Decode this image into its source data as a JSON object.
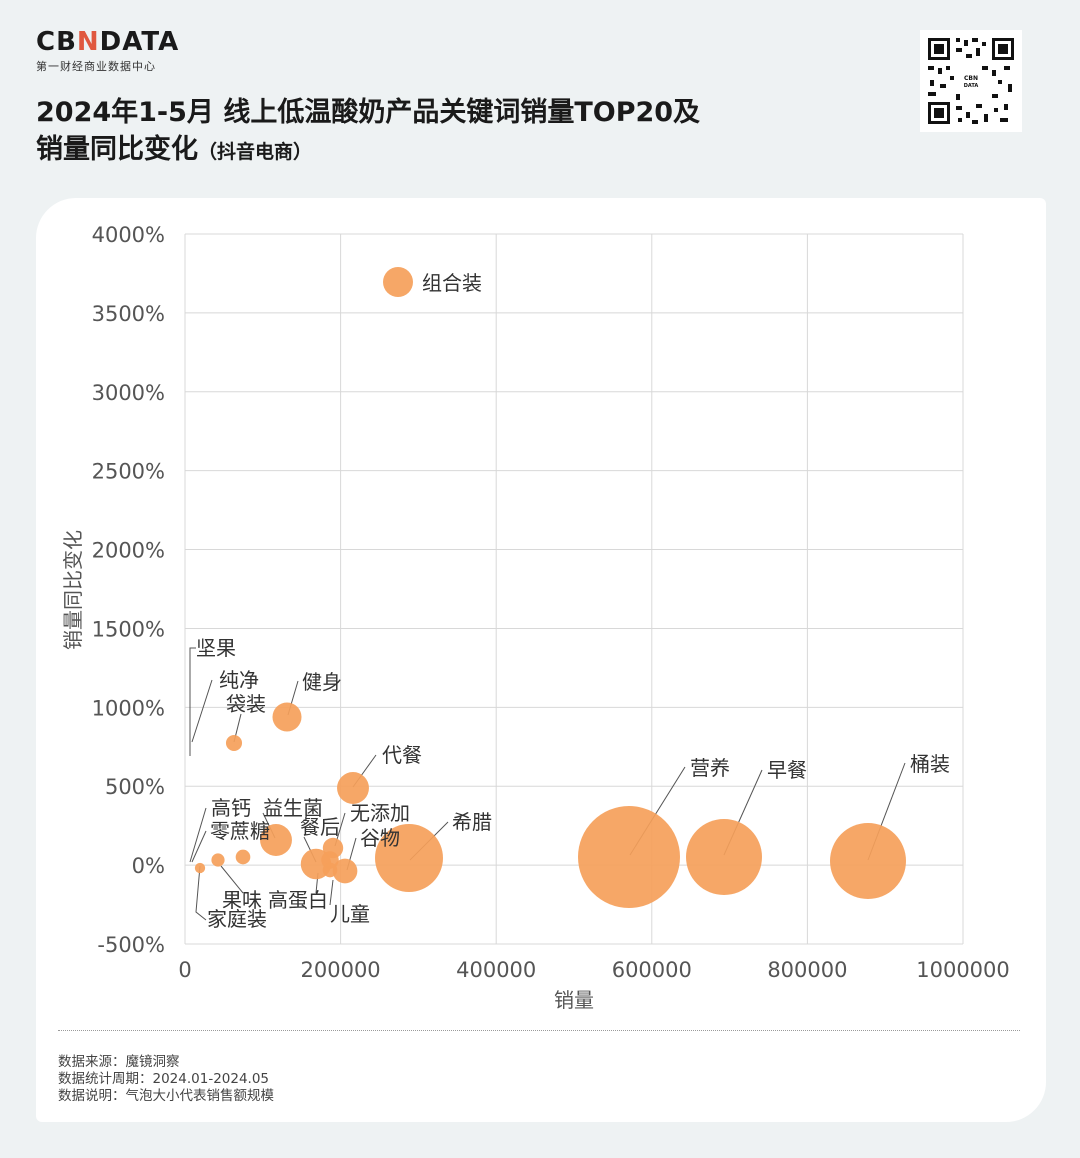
{
  "brand": {
    "logo_pre": "CB",
    "logo_x": "N",
    "logo_post": "DATA",
    "sub": "第一财经商业数据中心"
  },
  "header": {
    "title_line1": "2024年1-5月 线上低温酸奶产品关键词销量TOP20及",
    "title_line2": "销量同比变化",
    "title_suffix": "（抖音电商）"
  },
  "qr_icon": "qr-code-icon",
  "colors": {
    "bubble": "#f5a05a",
    "grid": "#d8d8d8",
    "leader": "#555555",
    "background": "#eef2f3"
  },
  "chart_data": {
    "type": "scatter",
    "subtype": "bubble",
    "xlabel": "销量",
    "ylabel": "销量同比变化",
    "xlim": [
      0,
      1000000
    ],
    "ylim": [
      -500,
      4000
    ],
    "x_ticks": [
      0,
      200000,
      400000,
      600000,
      800000,
      1000000
    ],
    "x_tick_labels": [
      "0",
      "200000",
      "400000",
      "600000",
      "800000",
      "1000000"
    ],
    "y_ticks": [
      -500,
      0,
      500,
      1000,
      1500,
      2000,
      2500,
      3000,
      3500,
      4000
    ],
    "y_tick_labels": [
      "-500%",
      "0%",
      "500%",
      "1000%",
      "1500%",
      "2000%",
      "2500%",
      "3000%",
      "3500%",
      "4000%"
    ],
    "grid": true,
    "size_meaning": "气泡大小代表销售额规模",
    "points": [
      {
        "name": "组合装",
        "x": 275000,
        "y": 3680,
        "size": 14
      },
      {
        "name": "坚果",
        "x": 8000,
        "y": 760,
        "size": 1
      },
      {
        "name": "纯净",
        "x": 10000,
        "y": 80,
        "size": 1
      },
      {
        "name": "袋装",
        "x": 62000,
        "y": 770,
        "size": 7
      },
      {
        "name": "健身",
        "x": 132000,
        "y": 935,
        "size": 16
      },
      {
        "name": "代餐",
        "x": 217000,
        "y": 485,
        "size": 18
      },
      {
        "name": "高钙",
        "x": 14000,
        "y": 30,
        "size": 1
      },
      {
        "name": "零蔗糖",
        "x": 40000,
        "y": 30,
        "size": 5
      },
      {
        "name": "果味",
        "x": 75000,
        "y": 55,
        "size": 6
      },
      {
        "name": "家庭装",
        "x": 18000,
        "y": -25,
        "size": 3
      },
      {
        "name": "益生菌",
        "x": 117000,
        "y": 165,
        "size": 18
      },
      {
        "name": "餐后",
        "x": 168000,
        "y": 5,
        "size": 17
      },
      {
        "name": "高蛋白",
        "x": 188000,
        "y": 110,
        "size": 10
      },
      {
        "name": "无添加",
        "x": 208000,
        "y": -40,
        "size": 13
      },
      {
        "name": "儿童",
        "x": 190000,
        "y": -10,
        "size": 8
      },
      {
        "name": "谷物",
        "x": 200000,
        "y": -30,
        "size": 6
      },
      {
        "name": "希腊",
        "x": 290000,
        "y": 40,
        "size": 34
      },
      {
        "name": "营养",
        "x": 570000,
        "y": 50,
        "size": 52
      },
      {
        "name": "早餐",
        "x": 692000,
        "y": 50,
        "size": 38
      },
      {
        "name": "桶装",
        "x": 877000,
        "y": 20,
        "size": 38
      }
    ]
  },
  "footer": {
    "source": "数据来源：魔镜洞察",
    "period": "数据统计周期：2024.01-2024.05",
    "note": "数据说明：气泡大小代表销售额规模"
  }
}
